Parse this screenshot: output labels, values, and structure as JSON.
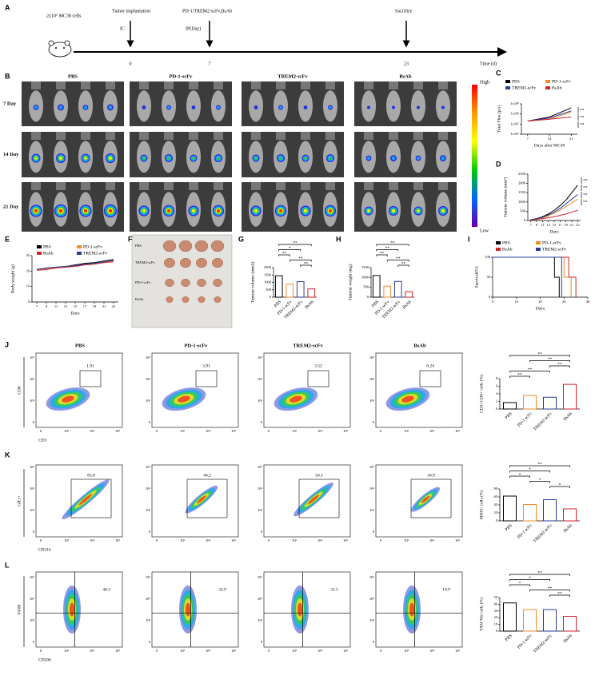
{
  "figure": {
    "panel_labels": [
      "A",
      "B",
      "C",
      "D",
      "E",
      "F",
      "G",
      "H",
      "I",
      "J",
      "K",
      "L"
    ],
    "timeline": {
      "cells": "2x10⁶ MC38 cells",
      "implant": "Tumor implantation",
      "implant_route": "IC",
      "treatment": "PD-1/TREM2-scFv,BsAb",
      "treatment_route": "IP(Day)",
      "sacrifice": "Sacrifice",
      "axis_label": "Time (d)",
      "days": [
        0,
        7,
        23
      ]
    },
    "imaging": {
      "groups": [
        "PBS",
        "PD-1-scFv",
        "TREM2-scFv",
        "BsAb"
      ],
      "rows": [
        "7 Day",
        "14 Day",
        "21 Day"
      ],
      "scale_high": "High",
      "scale_low": "Low"
    },
    "photo": {
      "labels": [
        "PBS",
        "TREM2-scFv",
        "PD-1-scFv",
        "BsAb"
      ]
    },
    "flow": {
      "groups": [
        "PBS",
        "PD-1-scFv",
        "TREM2-scFv",
        "BsAb"
      ],
      "ticks": [
        "0",
        "10³",
        "10⁴",
        "10⁵"
      ],
      "rows": [
        {
          "x_label": "CD3",
          "y_label": "CD8",
          "gates": [
            1.91,
            3.91,
            3.52,
            6.24
          ]
        },
        {
          "x_label": "CD11b",
          "y_label": "GR1+",
          "gates": [
            65.8,
            46.2,
            56.1,
            34.9
          ]
        },
        {
          "x_label": "CD206",
          "y_label": "F4/80",
          "gates": [
            40.3,
            33.9,
            31.5,
            19.9
          ]
        }
      ]
    }
  },
  "chart_data": [
    {
      "type": "line",
      "y_label": "Total Flux [p/s]",
      "x_label": "Days after MC38",
      "x": [
        7,
        14,
        21
      ],
      "xlim": [
        5,
        23
      ],
      "xticks": [
        7,
        14,
        21
      ],
      "log_scale": true,
      "ylim": [
        1000000,
        1000000000
      ],
      "yticks": [
        {
          "value": 1000000,
          "label": "1x10⁶"
        },
        {
          "value": 10000000,
          "label": "1x10⁷"
        },
        {
          "value": 100000000,
          "label": "1x10⁸"
        },
        {
          "value": 1000000000,
          "label": "1x10⁹"
        }
      ],
      "legend": "top",
      "series": [
        {
          "name": "PBS",
          "color": "#000000",
          "values": [
            20000000,
            50000000,
            400000000
          ]
        },
        {
          "name": "PD-1-scFv",
          "color": "#f28c28",
          "values": [
            20000000,
            30000000,
            150000000
          ]
        },
        {
          "name": "TREM2-scFv",
          "color": "#2a3c9c",
          "values": [
            20000000,
            40000000,
            200000000
          ]
        },
        {
          "name": "BsAb",
          "color": "#d2232a",
          "values": [
            20000000,
            30000000,
            50000000
          ]
        }
      ],
      "annotations": [
        "**",
        "**",
        "**"
      ]
    },
    {
      "type": "line",
      "y_label": "Tumour volume (mm³)",
      "x_label": "Days",
      "x": [
        7,
        9,
        11,
        13,
        15,
        17,
        19,
        21,
        23
      ],
      "xlim": [
        6,
        24
      ],
      "xticks": [
        7,
        9,
        11,
        13,
        15,
        17,
        19,
        21,
        23
      ],
      "ylim": [
        0,
        2500
      ],
      "yticks": [
        0,
        500,
        1000,
        1500,
        2000,
        2500
      ],
      "series": [
        {
          "name": "PBS",
          "color": "#000000",
          "values": [
            50,
            100,
            200,
            350,
            550,
            800,
            1100,
            1500,
            1900
          ]
        },
        {
          "name": "PD-1-scFv",
          "color": "#f28c28",
          "values": [
            50,
            80,
            150,
            250,
            400,
            550,
            750,
            950,
            1150
          ]
        },
        {
          "name": "TREM2-scFv",
          "color": "#2a3c9c",
          "values": [
            50,
            90,
            170,
            300,
            450,
            650,
            900,
            1150,
            1400
          ]
        },
        {
          "name": "BsAb",
          "color": "#d2232a",
          "values": [
            40,
            60,
            100,
            150,
            200,
            280,
            350,
            450,
            550
          ]
        }
      ],
      "annotations": [
        "**",
        "**",
        "**",
        "**"
      ]
    },
    {
      "type": "line",
      "y_label": "Body weight (g)",
      "x_label": "Days",
      "x": [
        7,
        9,
        11,
        13,
        15,
        17,
        19,
        21,
        23
      ],
      "xlim": [
        6,
        24
      ],
      "xticks": [
        7,
        9,
        11,
        13,
        15,
        17,
        19,
        21,
        23
      ],
      "ylim": [
        0,
        30
      ],
      "yticks": [
        0,
        10,
        20,
        30
      ],
      "legend": "top-left",
      "series": [
        {
          "name": "PBS",
          "color": "#000000",
          "values": [
            21,
            22,
            22.5,
            23,
            24,
            25,
            25.5,
            26.5,
            27.5
          ]
        },
        {
          "name": "PD-1-scFv",
          "color": "#f28c28",
          "values": [
            21,
            21.5,
            22,
            23,
            23.5,
            24,
            25,
            25.5,
            26.5
          ]
        },
        {
          "name": "BsAb",
          "color": "#d2232a",
          "values": [
            20.5,
            21,
            22,
            22.5,
            23,
            24,
            24.5,
            25.5,
            26
          ]
        },
        {
          "name": "TREM2-scFv",
          "color": "#2a3c9c",
          "values": [
            21,
            22,
            22.5,
            23,
            23.5,
            24.5,
            25,
            26,
            27
          ]
        }
      ]
    },
    {
      "type": "bar",
      "y_label": "Tumour volume (mm3)",
      "categories": [
        "PBS",
        "PD-1 scFv",
        "TREM2-scFv",
        "BsAb"
      ],
      "values": [
        1450,
        880,
        1050,
        560
      ],
      "colors": [
        "#000000",
        "#f28c28",
        "#2a3c9c",
        "#d2232a"
      ],
      "ylim": [
        0,
        2000
      ],
      "yticks": [
        0,
        500,
        1000,
        1500,
        2000
      ],
      "annotations": [
        "**",
        "*",
        "**",
        "**",
        "**"
      ]
    },
    {
      "type": "bar",
      "y_label": "Tumour weight (mg)",
      "categories": [
        "PBS",
        "PD-1 scFv",
        "TREM2 scFv",
        "BsAb"
      ],
      "values": [
        1100,
        560,
        800,
        280
      ],
      "colors": [
        "#000000",
        "#f28c28",
        "#2a3c9c",
        "#d2232a"
      ],
      "ylim": [
        0,
        1500
      ],
      "yticks": [
        0,
        500,
        1000,
        1500
      ],
      "annotations": [
        "**",
        "**",
        "**",
        "**",
        "**"
      ]
    },
    {
      "type": "line",
      "y_label": "Survival(%)",
      "x_label": "Days",
      "xlim": [
        0,
        40
      ],
      "xticks": [
        0,
        10,
        20,
        30,
        40
      ],
      "ylim": [
        0,
        100
      ],
      "yticks": [
        0,
        50,
        100
      ],
      "legend": "top",
      "series": [
        {
          "name": "PBS",
          "color": "#000000",
          "x": [
            0,
            26,
            26,
            28,
            28
          ],
          "values": [
            100,
            100,
            50,
            50,
            0
          ]
        },
        {
          "name": "PD-1-scFv",
          "color": "#f28c28",
          "x": [
            0,
            30,
            30,
            33,
            33
          ],
          "values": [
            100,
            100,
            50,
            50,
            0
          ]
        },
        {
          "name": "BsAb",
          "color": "#d2232a",
          "x": [
            0,
            32,
            32,
            35,
            35
          ],
          "values": [
            100,
            100,
            50,
            50,
            0
          ]
        },
        {
          "name": "TREM2-scFv",
          "color": "#2a3c9c",
          "x": [
            0,
            29,
            29
          ],
          "values": [
            100,
            100,
            0
          ]
        }
      ]
    },
    {
      "type": "bar",
      "y_label": "CD3+CD8+ cells (%)",
      "categories": [
        "PBS",
        "PD-1 scFv",
        "TREM2-scFv",
        "BsAb"
      ],
      "values": [
        1.7,
        3.6,
        3.1,
        6.5
      ],
      "colors": [
        "#000000",
        "#f28c28",
        "#2a3c9c",
        "#d2232a"
      ],
      "ylim": [
        0,
        8
      ],
      "yticks": [
        0,
        2,
        4,
        6,
        8
      ],
      "annotations": [
        "**",
        "**",
        "**",
        "**",
        "**"
      ]
    },
    {
      "type": "bar",
      "y_label": "MDSC cells (%)",
      "categories": [
        "PBS",
        "PD-1 scFv",
        "TREM2-scFv",
        "BsAb"
      ],
      "values": [
        62,
        41,
        53,
        30
      ],
      "colors": [
        "#000000",
        "#f28c28",
        "#2a3c9c",
        "#d2232a"
      ],
      "ylim": [
        0,
        80
      ],
      "yticks": [
        0,
        20,
        40,
        60,
        80
      ],
      "annotations": [
        "**",
        "*",
        "*",
        "*",
        "*"
      ]
    },
    {
      "type": "bar",
      "y_label": "TAM M2 cells (%)",
      "categories": [
        "PBS",
        "PD-1 scFv",
        "TREM2-scFv",
        "BsAb"
      ],
      "values": [
        42,
        32,
        32,
        22
      ],
      "colors": [
        "#000000",
        "#f28c28",
        "#2a3c9c",
        "#d2232a"
      ],
      "ylim": [
        0,
        50
      ],
      "yticks": [
        0,
        10,
        20,
        30,
        40,
        50
      ],
      "annotations": [
        "**",
        "*",
        "*",
        "**",
        "**"
      ]
    }
  ]
}
